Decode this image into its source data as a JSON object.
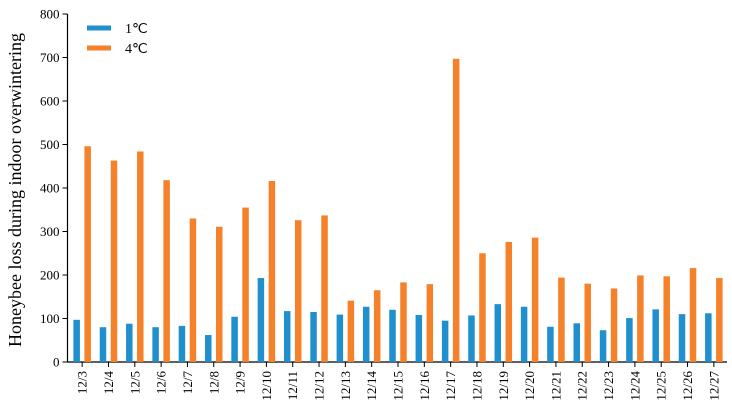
{
  "chart_data": {
    "type": "bar",
    "title": "",
    "xlabel": "",
    "ylabel": "Honeybee loss during indoor overwintering",
    "ylim": [
      0,
      800
    ],
    "yticks": [
      0,
      100,
      200,
      300,
      400,
      500,
      600,
      700,
      800
    ],
    "grid": false,
    "legend_position": "top-left",
    "categories": [
      "12/3",
      "12/4",
      "12/5",
      "12/6",
      "12/7",
      "12/8",
      "12/9",
      "12/10",
      "12/11",
      "12/12",
      "12/13",
      "12/14",
      "12/15",
      "12/16",
      "12/17",
      "12/18",
      "12/19",
      "12/20",
      "12/21",
      "12/22",
      "12/23",
      "12/24",
      "12/25",
      "12/26",
      "12/27"
    ],
    "series": [
      {
        "name": "1℃",
        "color": "#1f8fce",
        "values": [
          97,
          80,
          88,
          80,
          83,
          62,
          104,
          193,
          117,
          115,
          109,
          127,
          120,
          108,
          95,
          107,
          133,
          127,
          81,
          89,
          73,
          101,
          121,
          110,
          112
        ]
      },
      {
        "name": "4℃",
        "color": "#f5822a",
        "values": [
          496,
          463,
          484,
          418,
          330,
          311,
          355,
          416,
          326,
          337,
          141,
          165,
          183,
          179,
          697,
          250,
          276,
          286,
          194,
          180,
          169,
          199,
          197,
          216,
          193
        ]
      }
    ]
  }
}
